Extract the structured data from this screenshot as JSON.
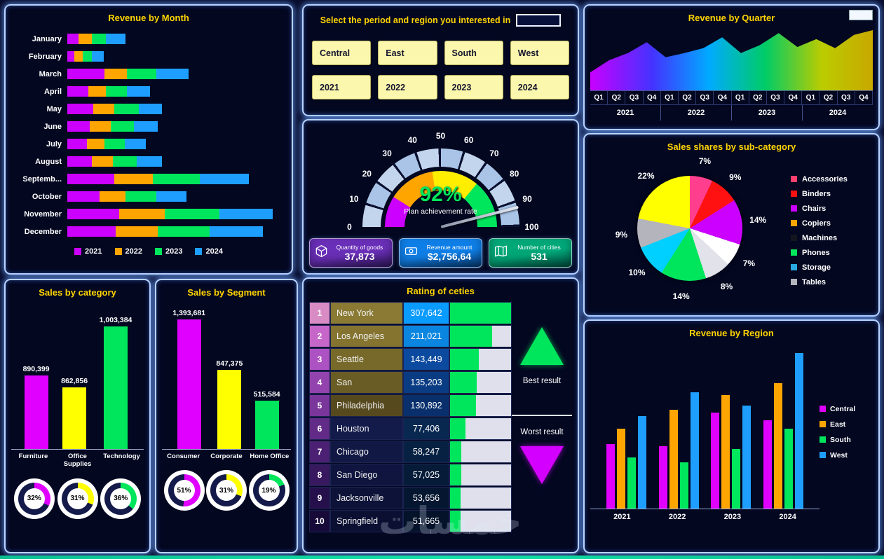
{
  "watermark": "خمسات",
  "slicer_panel": {
    "title": "Select the period and region you interested in",
    "search_value": "",
    "regions": [
      "Central",
      "East",
      "South",
      "West"
    ],
    "years": [
      "2021",
      "2022",
      "2023",
      "2024"
    ]
  },
  "revenue_by_month": {
    "title": "Revenue by Month",
    "chart_data": {
      "type": "bar",
      "orientation": "horizontal",
      "stacked": true,
      "categories": [
        "January",
        "February",
        "March",
        "April",
        "May",
        "June",
        "July",
        "August",
        "Septemb...",
        "October",
        "November",
        "December"
      ],
      "series": [
        {
          "name": "2021",
          "color": "#cc00ff",
          "values": [
            14,
            9,
            46,
            26,
            32,
            28,
            24,
            30,
            58,
            40,
            64,
            60
          ]
        },
        {
          "name": "2022",
          "color": "#ffa500",
          "values": [
            16,
            10,
            28,
            22,
            26,
            26,
            22,
            26,
            48,
            32,
            56,
            52
          ]
        },
        {
          "name": "2023",
          "color": "#00e65c",
          "values": [
            18,
            11,
            36,
            26,
            30,
            28,
            25,
            30,
            58,
            38,
            68,
            64
          ]
        },
        {
          "name": "2024",
          "color": "#1e9fff",
          "values": [
            24,
            15,
            40,
            28,
            29,
            30,
            26,
            31,
            60,
            37,
            66,
            66
          ]
        }
      ],
      "legend_position": "bottom"
    }
  },
  "gauge_panel": {
    "chart_data": {
      "type": "gauge",
      "value": 92,
      "min": 0,
      "max": 100,
      "ticks": [
        0,
        10,
        20,
        30,
        40,
        50,
        60,
        70,
        80,
        90,
        100
      ],
      "value_label": "92%",
      "caption": "Plan achievement rate",
      "zones": [
        {
          "to": 18,
          "color": "#cc00ff"
        },
        {
          "to": 45,
          "color": "#ffa500"
        },
        {
          "to": 72,
          "color": "#ffee00"
        },
        {
          "to": 100,
          "color": "#00e65c"
        }
      ]
    },
    "kpis": [
      {
        "label": "Quantity of goods",
        "value": "37,873",
        "color": "#6a2fb8",
        "icon": "box-icon"
      },
      {
        "label": "Revenue amount",
        "value": "$2,756,64",
        "color": "#0f7fe8",
        "icon": "banknote-icon"
      },
      {
        "label": "Number of cities",
        "value": "531",
        "color": "#00a878",
        "icon": "map-icon"
      }
    ]
  },
  "revenue_by_quarter": {
    "title": "Revenue by Quarter",
    "chart_data": {
      "type": "area",
      "x": [
        "Q1",
        "Q2",
        "Q3",
        "Q4",
        "Q1",
        "Q2",
        "Q3",
        "Q4",
        "Q1",
        "Q2",
        "Q3",
        "Q4",
        "Q1",
        "Q2",
        "Q3",
        "Q4"
      ],
      "year_groups": [
        "2021",
        "2022",
        "2023",
        "2024"
      ],
      "values": [
        30,
        50,
        62,
        80,
        55,
        62,
        70,
        88,
        62,
        75,
        95,
        72,
        85,
        70,
        92,
        100
      ],
      "gradient": [
        "#c800ff",
        "#4433ff",
        "#00aaff",
        "#00cc66",
        "#bbcc00",
        "#c8a800"
      ]
    }
  },
  "sales_shares": {
    "title": "Sales shares by sub-category",
    "chart_data": {
      "type": "pie",
      "slices": [
        {
          "label": "7%",
          "value": 7,
          "color": "#ff3f8e"
        },
        {
          "label": "9%",
          "value": 9,
          "color": "#ff1111"
        },
        {
          "label": "14%",
          "value": 14,
          "color": "#cc00ff"
        },
        {
          "label": "7%",
          "value": 7,
          "color": "#ffffff"
        },
        {
          "label": "8%",
          "value": 8,
          "color": "#e2e2ea"
        },
        {
          "label": "14%",
          "value": 14,
          "color": "#00e65c"
        },
        {
          "label": "10%",
          "value": 10,
          "color": "#00d0ff"
        },
        {
          "label": "9%",
          "value": 9,
          "color": "#b4b4bc"
        },
        {
          "label": "22%",
          "value": 22,
          "color": "#ffff00"
        }
      ],
      "legend": [
        {
          "label": "Accessories",
          "color": "#ff3f6e"
        },
        {
          "label": "Binders",
          "color": "#ff1111"
        },
        {
          "label": "Chairs",
          "color": "#cc00ff"
        },
        {
          "label": "Copiers",
          "color": "#ffa500"
        },
        {
          "label": "Machines",
          "color": "#15151f"
        },
        {
          "label": "Phones",
          "color": "#00e65c"
        },
        {
          "label": "Storage",
          "color": "#29abe2"
        },
        {
          "label": "Tables",
          "color": "#b4b4bc"
        }
      ],
      "legend_position": "right"
    }
  },
  "sales_by_category": {
    "title": "Sales by category",
    "chart_data": {
      "type": "bar",
      "categories": [
        "Furniture",
        "Office Supplies",
        "Technology"
      ],
      "values": [
        890399,
        862856,
        1003384
      ],
      "value_labels": [
        "890,399",
        "862,856",
        "1,003,384"
      ],
      "colors": [
        "#e000ff",
        "#ffff00",
        "#00e65c"
      ],
      "ymin": 720000,
      "ymax": 1020000,
      "donuts": [
        {
          "label": "32%",
          "value": 32
        },
        {
          "label": "31%",
          "value": 31
        },
        {
          "label": "36%",
          "value": 36
        }
      ]
    }
  },
  "sales_by_segment": {
    "title": "Sales by Segment",
    "chart_data": {
      "type": "bar",
      "categories": [
        "Consumer",
        "Corporate",
        "Home Office"
      ],
      "values": [
        1393681,
        847375,
        515584
      ],
      "value_labels": [
        "1,393,681",
        "847,375",
        "515,584"
      ],
      "colors": [
        "#e000ff",
        "#ffff00",
        "#00e65c"
      ],
      "ymin": 0,
      "ymax": 1430000,
      "donuts": [
        {
          "label": "51%",
          "value": 51
        },
        {
          "label": "31%",
          "value": 31
        },
        {
          "label": "19%",
          "value": 19
        }
      ]
    }
  },
  "rating_of_cities": {
    "title": "Rating of ceties",
    "best_label": "Best result",
    "worst_label": "Worst result",
    "rows": [
      {
        "rank": "1",
        "city": "New York",
        "value": "307,642",
        "num": 307642
      },
      {
        "rank": "2",
        "city": "Los Angeles",
        "value": "211,021",
        "num": 211021
      },
      {
        "rank": "3",
        "city": "Seattle",
        "value": "143,449",
        "num": 143449
      },
      {
        "rank": "4",
        "city": "San",
        "value": "135,203",
        "num": 135203
      },
      {
        "rank": "5",
        "city": "Philadelphia",
        "value": "130,892",
        "num": 130892
      },
      {
        "rank": "6",
        "city": "Houston",
        "value": "77,406",
        "num": 77406
      },
      {
        "rank": "7",
        "city": "Chicago",
        "value": "58,247",
        "num": 58247
      },
      {
        "rank": "8",
        "city": "San Diego",
        "value": "57,025",
        "num": 57025
      },
      {
        "rank": "9",
        "city": "Jacksonville",
        "value": "53,656",
        "num": 53656
      },
      {
        "rank": "10",
        "city": "Springfield",
        "value": "51,665",
        "num": 51665
      }
    ]
  },
  "revenue_by_region": {
    "title": "Revenue by Region",
    "chart_data": {
      "type": "bar",
      "grouped": true,
      "categories": [
        "2021",
        "2022",
        "2023",
        "2024"
      ],
      "ylim": [
        0,
        240
      ],
      "series": [
        {
          "name": "Central",
          "color": "#e000ff",
          "values": [
            95,
            92,
            142,
            130
          ]
        },
        {
          "name": "East",
          "color": "#ffa500",
          "values": [
            118,
            146,
            168,
            185
          ]
        },
        {
          "name": "South",
          "color": "#00e65c",
          "values": [
            75,
            68,
            88,
            118
          ]
        },
        {
          "name": "West",
          "color": "#1e9fff",
          "values": [
            137,
            172,
            152,
            230
          ]
        }
      ],
      "legend_position": "right"
    }
  }
}
